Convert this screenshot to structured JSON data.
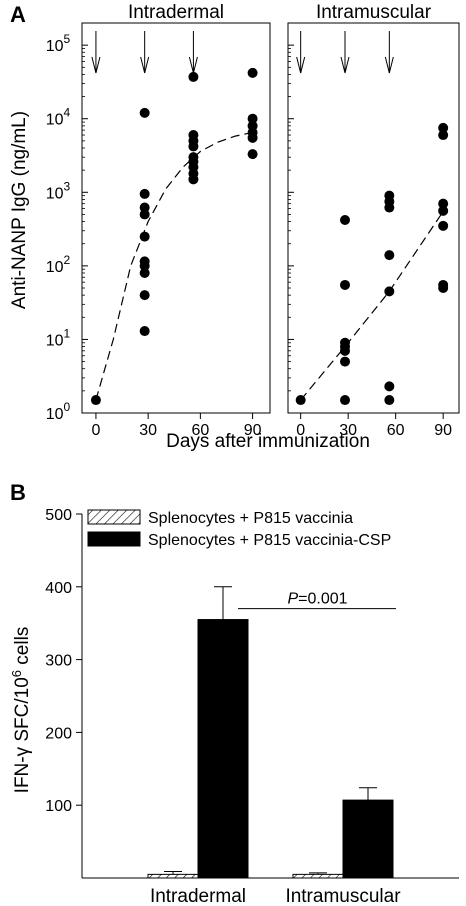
{
  "chart_data": [
    {
      "type": "scatter",
      "panel_label": "A",
      "xlabel": "Days after immunization",
      "ylabel": "Anti-NANP IgG (ng/mL)",
      "y_scale": "log",
      "ylim": [
        1,
        200000
      ],
      "xlim": [
        -8,
        100
      ],
      "x_ticks": [
        "0",
        "30",
        "60",
        "90"
      ],
      "y_ticks": [
        {
          "value": 1,
          "base": "10",
          "exp": "0"
        },
        {
          "value": 10,
          "base": "10",
          "exp": "1"
        },
        {
          "value": 100,
          "base": "10",
          "exp": "2"
        },
        {
          "value": 1000,
          "base": "10",
          "exp": "3"
        },
        {
          "value": 10000,
          "base": "10",
          "exp": "4"
        },
        {
          "value": 100000,
          "base": "10",
          "exp": "5"
        }
      ],
      "immunization_days": [
        0,
        28,
        56
      ],
      "panels": [
        {
          "title": "Intradermal",
          "points": [
            {
              "x": 0,
              "y": 1.5
            },
            {
              "x": 28,
              "y": 12000
            },
            {
              "x": 28,
              "y": 950
            },
            {
              "x": 28,
              "y": 620
            },
            {
              "x": 28,
              "y": 500
            },
            {
              "x": 28,
              "y": 250
            },
            {
              "x": 28,
              "y": 115
            },
            {
              "x": 28,
              "y": 100
            },
            {
              "x": 28,
              "y": 80
            },
            {
              "x": 28,
              "y": 40
            },
            {
              "x": 28,
              "y": 13
            },
            {
              "x": 56,
              "y": 37000
            },
            {
              "x": 56,
              "y": 6000
            },
            {
              "x": 56,
              "y": 5000
            },
            {
              "x": 56,
              "y": 4200
            },
            {
              "x": 56,
              "y": 3000
            },
            {
              "x": 56,
              "y": 2600
            },
            {
              "x": 56,
              "y": 2200
            },
            {
              "x": 56,
              "y": 1800
            },
            {
              "x": 56,
              "y": 1500
            },
            {
              "x": 90,
              "y": 42000
            },
            {
              "x": 90,
              "y": 10000
            },
            {
              "x": 90,
              "y": 8000
            },
            {
              "x": 90,
              "y": 6500
            },
            {
              "x": 90,
              "y": 5500
            },
            {
              "x": 90,
              "y": 3300
            }
          ],
          "trend": [
            {
              "x": 0,
              "y": 1.5
            },
            {
              "x": 10,
              "y": 10
            },
            {
              "x": 20,
              "y": 100
            },
            {
              "x": 30,
              "y": 400
            },
            {
              "x": 40,
              "y": 1100
            },
            {
              "x": 50,
              "y": 2200
            },
            {
              "x": 60,
              "y": 3600
            },
            {
              "x": 70,
              "y": 4800
            },
            {
              "x": 80,
              "y": 5800
            },
            {
              "x": 90,
              "y": 6500
            }
          ]
        },
        {
          "title": "Intramuscular",
          "points": [
            {
              "x": 0,
              "y": 1.5
            },
            {
              "x": 28,
              "y": 420
            },
            {
              "x": 28,
              "y": 55
            },
            {
              "x": 28,
              "y": 9
            },
            {
              "x": 28,
              "y": 8
            },
            {
              "x": 28,
              "y": 7
            },
            {
              "x": 28,
              "y": 5
            },
            {
              "x": 28,
              "y": 1.5
            },
            {
              "x": 56,
              "y": 900
            },
            {
              "x": 56,
              "y": 750
            },
            {
              "x": 56,
              "y": 620
            },
            {
              "x": 56,
              "y": 140
            },
            {
              "x": 56,
              "y": 45
            },
            {
              "x": 56,
              "y": 2.3
            },
            {
              "x": 56,
              "y": 1.5
            },
            {
              "x": 90,
              "y": 7500
            },
            {
              "x": 90,
              "y": 6000
            },
            {
              "x": 90,
              "y": 700
            },
            {
              "x": 90,
              "y": 560
            },
            {
              "x": 90,
              "y": 350
            },
            {
              "x": 90,
              "y": 55
            },
            {
              "x": 90,
              "y": 50
            }
          ],
          "trend": [
            {
              "x": 0,
              "y": 1.5
            },
            {
              "x": 28,
              "y": 8
            },
            {
              "x": 56,
              "y": 45
            },
            {
              "x": 90,
              "y": 550
            }
          ]
        }
      ]
    },
    {
      "type": "bar",
      "panel_label": "B",
      "ylabel_prefix": "IFN-γ SFC/10",
      "ylabel_sup": "6",
      "ylabel_suffix": " cells",
      "ylim": [
        0,
        500
      ],
      "y_ticks": [
        100,
        200,
        300,
        400,
        500
      ],
      "categories": [
        "Intradermal",
        "Intramuscular"
      ],
      "series": [
        {
          "name": "Splenocytes + P815  vaccinia",
          "pattern": "hatched",
          "values": [
            5,
            5
          ],
          "errors": [
            4,
            2
          ]
        },
        {
          "name": "Splenocytes + P815 vaccinia-CSP",
          "pattern": "solid",
          "color": "#000000",
          "values": [
            355,
            107
          ],
          "errors": [
            45,
            17
          ]
        }
      ],
      "annotation": {
        "italic": "P",
        "text": "=0.001"
      }
    }
  ]
}
